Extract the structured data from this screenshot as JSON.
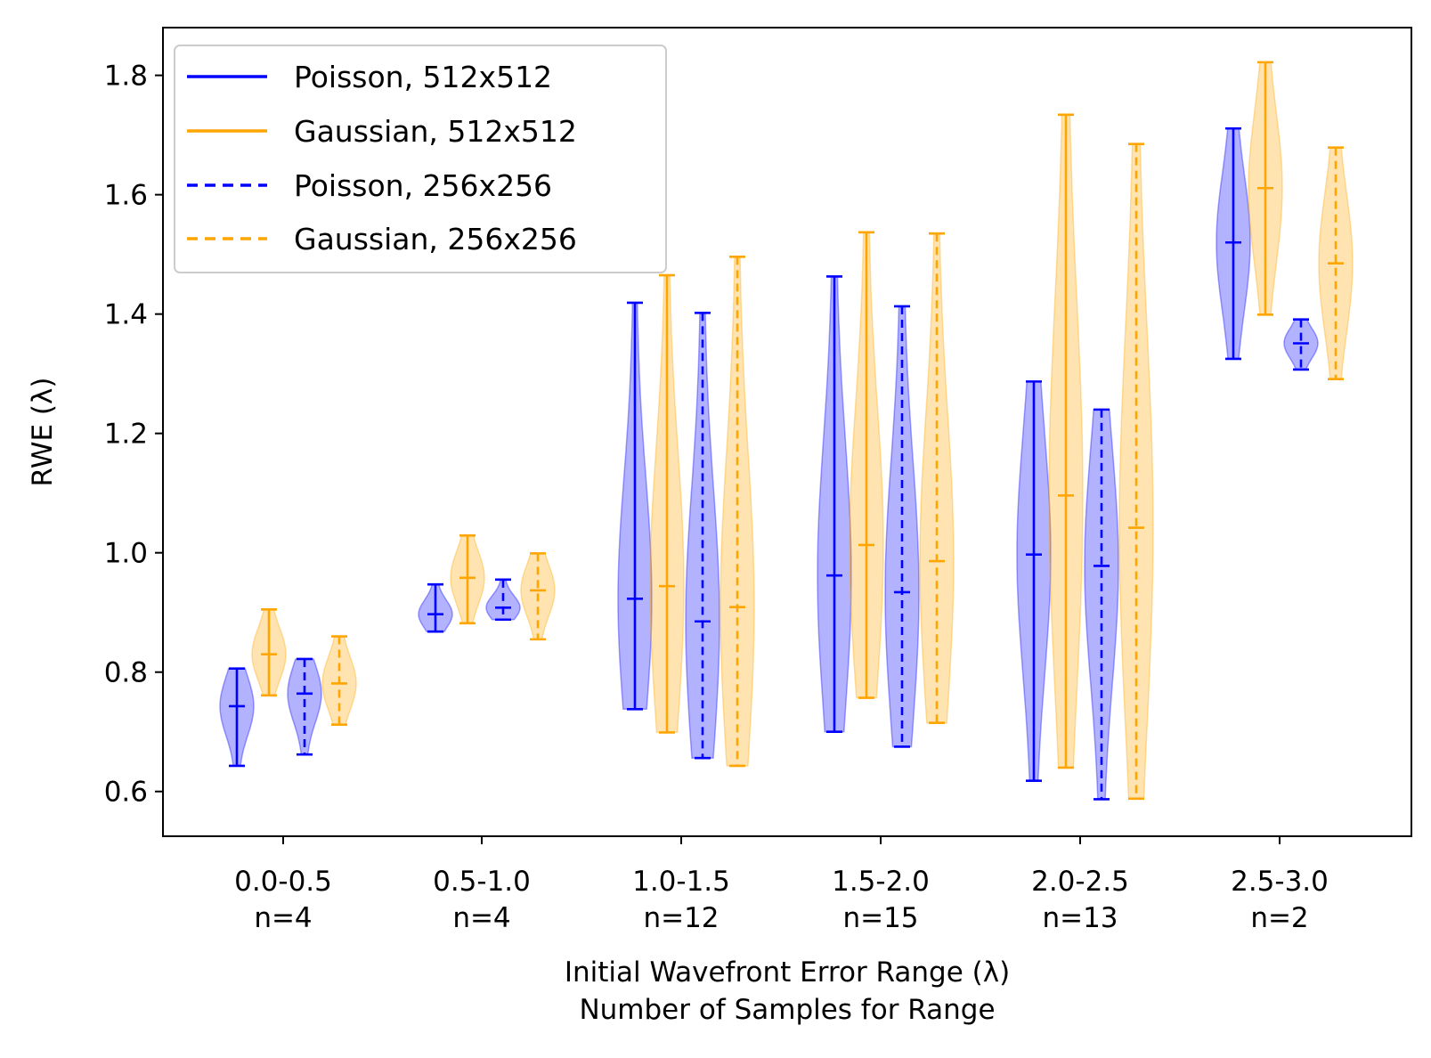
{
  "chart_data": {
    "type": "violin",
    "xlabel_lines": [
      "Initial Wavefront Error Range (λ)",
      "Number of Samples for Range"
    ],
    "ylabel": "RWE (λ)",
    "ylim": [
      0.525,
      1.88
    ],
    "yticks": [
      "0.6",
      "0.8",
      "1.0",
      "1.2",
      "1.4",
      "1.6",
      "1.8"
    ],
    "grid": false,
    "legend_position": "top-left",
    "groups": [
      {
        "range": "0.0-0.5",
        "count": "n=4"
      },
      {
        "range": "0.5-1.0",
        "count": "n=4"
      },
      {
        "range": "1.0-1.5",
        "count": "n=12"
      },
      {
        "range": "1.5-2.0",
        "count": "n=15"
      },
      {
        "range": "2.0-2.5",
        "count": "n=13"
      },
      {
        "range": "2.5-3.0",
        "count": "n=2"
      }
    ],
    "colors": {
      "poisson": "#0000ff",
      "gaussian": "#ffa500"
    },
    "series": [
      {
        "name": "Poisson, 512x512",
        "color": "#0000ff",
        "linestyle": "solid",
        "min": [
          0.643,
          0.868,
          0.738,
          0.7,
          0.618,
          1.325
        ],
        "median": [
          0.743,
          0.897,
          0.923,
          0.962,
          0.997,
          1.52
        ],
        "max": [
          0.806,
          0.947,
          1.419,
          1.463,
          1.287,
          1.711
        ]
      },
      {
        "name": "Gaussian, 512x512",
        "color": "#ffa500",
        "linestyle": "solid",
        "min": [
          0.761,
          0.882,
          0.699,
          0.757,
          0.64,
          1.399
        ],
        "median": [
          0.83,
          0.958,
          0.944,
          1.013,
          1.096,
          1.611
        ],
        "max": [
          0.905,
          1.029,
          1.465,
          1.537,
          1.734,
          1.822
        ]
      },
      {
        "name": "Poisson, 256x256",
        "color": "#0000ff",
        "linestyle": "dashed",
        "min": [
          0.662,
          0.888,
          0.656,
          0.675,
          0.587,
          1.307
        ],
        "median": [
          0.764,
          0.908,
          0.885,
          0.934,
          0.978,
          1.351
        ],
        "max": [
          0.822,
          0.955,
          1.402,
          1.413,
          1.24,
          1.391
        ]
      },
      {
        "name": "Gaussian, 256x256",
        "color": "#ffa500",
        "linestyle": "dashed",
        "min": [
          0.712,
          0.855,
          0.643,
          0.715,
          0.588,
          1.291
        ],
        "median": [
          0.781,
          0.937,
          0.909,
          0.986,
          1.042,
          1.485
        ],
        "max": [
          0.86,
          0.999,
          1.496,
          1.535,
          1.685,
          1.679
        ]
      }
    ]
  }
}
